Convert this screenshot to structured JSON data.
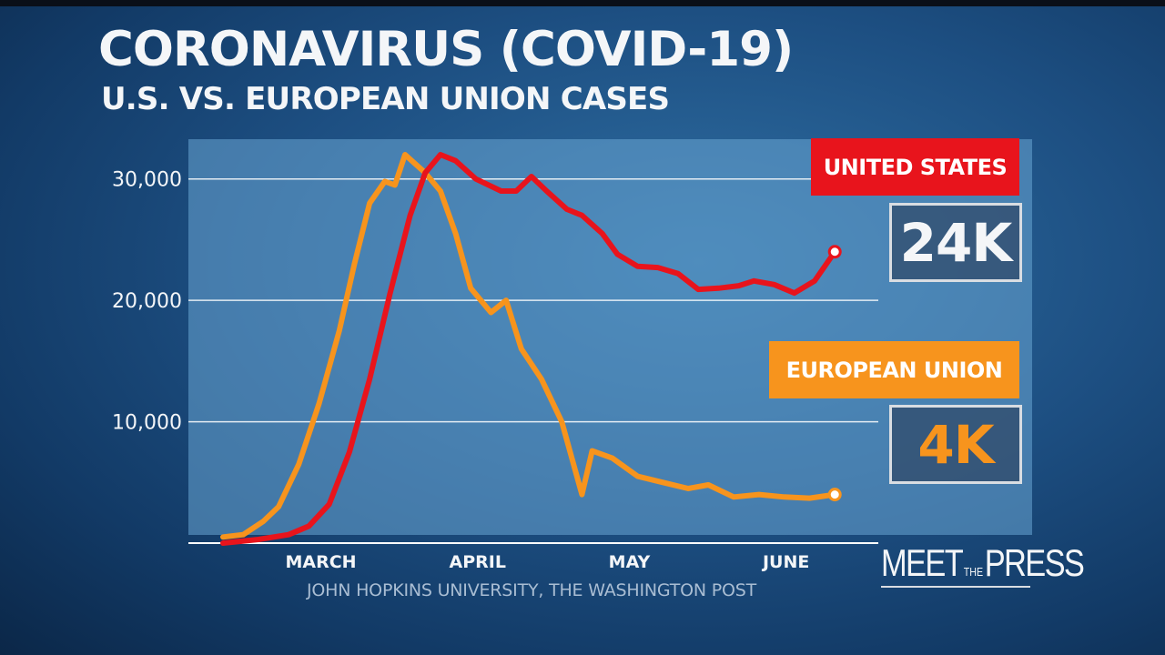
{
  "title": "CORONAVIRUS (COVID-19)",
  "subtitle": "U.S. VS. EUROPEAN UNION CASES",
  "source": "JOHN HOPKINS UNIVERSITY, THE WASHINGTON POST",
  "logo": {
    "left": "MEET",
    "middle": "THE",
    "right": "PRESS"
  },
  "labels": {
    "us_name": "UNITED STATES",
    "us_value": "24K",
    "eu_name": "EUROPEAN UNION",
    "eu_value": "4K"
  },
  "colors": {
    "us": "#e8141c",
    "eu": "#f7941d",
    "background": "#1d4f82",
    "text": "#f4f6f8"
  },
  "chart_data": {
    "type": "line",
    "title": "CORONAVIRUS (COVID-19)",
    "subtitle": "U.S. VS. EUROPEAN UNION CASES",
    "xlabel": "",
    "ylabel": "",
    "x_range": [
      "2020-02-20",
      "2020-06-25"
    ],
    "ylim": [
      0,
      32000
    ],
    "y_ticks": [
      {
        "value": 10000,
        "label": "10,000"
      },
      {
        "value": 20000,
        "label": "20,000"
      },
      {
        "value": 30000,
        "label": "30,000"
      }
    ],
    "x_ticks": [
      {
        "date": "2020-03-01",
        "label": "MARCH"
      },
      {
        "date": "2020-04-01",
        "label": "APRIL"
      },
      {
        "date": "2020-05-01",
        "label": "MAY"
      },
      {
        "date": "2020-06-01",
        "label": "JUNE"
      }
    ],
    "grid": true,
    "series": [
      {
        "name": "UNITED STATES",
        "color": "#e8141c",
        "current_label": "24K",
        "points": [
          [
            "2020-02-20",
            0
          ],
          [
            "2020-02-27",
            300
          ],
          [
            "2020-03-04",
            700
          ],
          [
            "2020-03-08",
            1400
          ],
          [
            "2020-03-12",
            3200
          ],
          [
            "2020-03-16",
            7500
          ],
          [
            "2020-03-20",
            13500
          ],
          [
            "2020-03-24",
            20500
          ],
          [
            "2020-03-28",
            27000
          ],
          [
            "2020-03-31",
            30500
          ],
          [
            "2020-04-03",
            32000
          ],
          [
            "2020-04-06",
            31500
          ],
          [
            "2020-04-10",
            30000
          ],
          [
            "2020-04-15",
            29000
          ],
          [
            "2020-04-18",
            29000
          ],
          [
            "2020-04-21",
            30200
          ],
          [
            "2020-04-24",
            29000
          ],
          [
            "2020-04-28",
            27500
          ],
          [
            "2020-05-01",
            27000
          ],
          [
            "2020-05-05",
            25500
          ],
          [
            "2020-05-08",
            23800
          ],
          [
            "2020-05-12",
            22800
          ],
          [
            "2020-05-16",
            22700
          ],
          [
            "2020-05-20",
            22200
          ],
          [
            "2020-05-24",
            20900
          ],
          [
            "2020-05-28",
            21000
          ],
          [
            "2020-06-01",
            21200
          ],
          [
            "2020-06-04",
            21600
          ],
          [
            "2020-06-08",
            21300
          ],
          [
            "2020-06-12",
            20600
          ],
          [
            "2020-06-16",
            21600
          ],
          [
            "2020-06-20",
            24000
          ]
        ]
      },
      {
        "name": "EUROPEAN UNION",
        "color": "#f7941d",
        "current_label": "4K",
        "points": [
          [
            "2020-02-20",
            500
          ],
          [
            "2020-02-24",
            700
          ],
          [
            "2020-02-28",
            1800
          ],
          [
            "2020-03-02",
            3000
          ],
          [
            "2020-03-06",
            6500
          ],
          [
            "2020-03-10",
            11500
          ],
          [
            "2020-03-14",
            17500
          ],
          [
            "2020-03-17",
            23000
          ],
          [
            "2020-03-20",
            28000
          ],
          [
            "2020-03-23",
            29800
          ],
          [
            "2020-03-25",
            29500
          ],
          [
            "2020-03-27",
            32000
          ],
          [
            "2020-03-31",
            30500
          ],
          [
            "2020-04-03",
            29000
          ],
          [
            "2020-04-06",
            25500
          ],
          [
            "2020-04-09",
            21000
          ],
          [
            "2020-04-13",
            19000
          ],
          [
            "2020-04-16",
            20000
          ],
          [
            "2020-04-19",
            16000
          ],
          [
            "2020-04-23",
            13500
          ],
          [
            "2020-04-27",
            10000
          ],
          [
            "2020-05-01",
            4000
          ],
          [
            "2020-05-03",
            7600
          ],
          [
            "2020-05-07",
            7000
          ],
          [
            "2020-05-12",
            5500
          ],
          [
            "2020-05-17",
            5000
          ],
          [
            "2020-05-22",
            4500
          ],
          [
            "2020-05-26",
            4800
          ],
          [
            "2020-05-31",
            3800
          ],
          [
            "2020-06-05",
            4000
          ],
          [
            "2020-06-10",
            3800
          ],
          [
            "2020-06-15",
            3700
          ],
          [
            "2020-06-20",
            4000
          ]
        ]
      }
    ]
  }
}
